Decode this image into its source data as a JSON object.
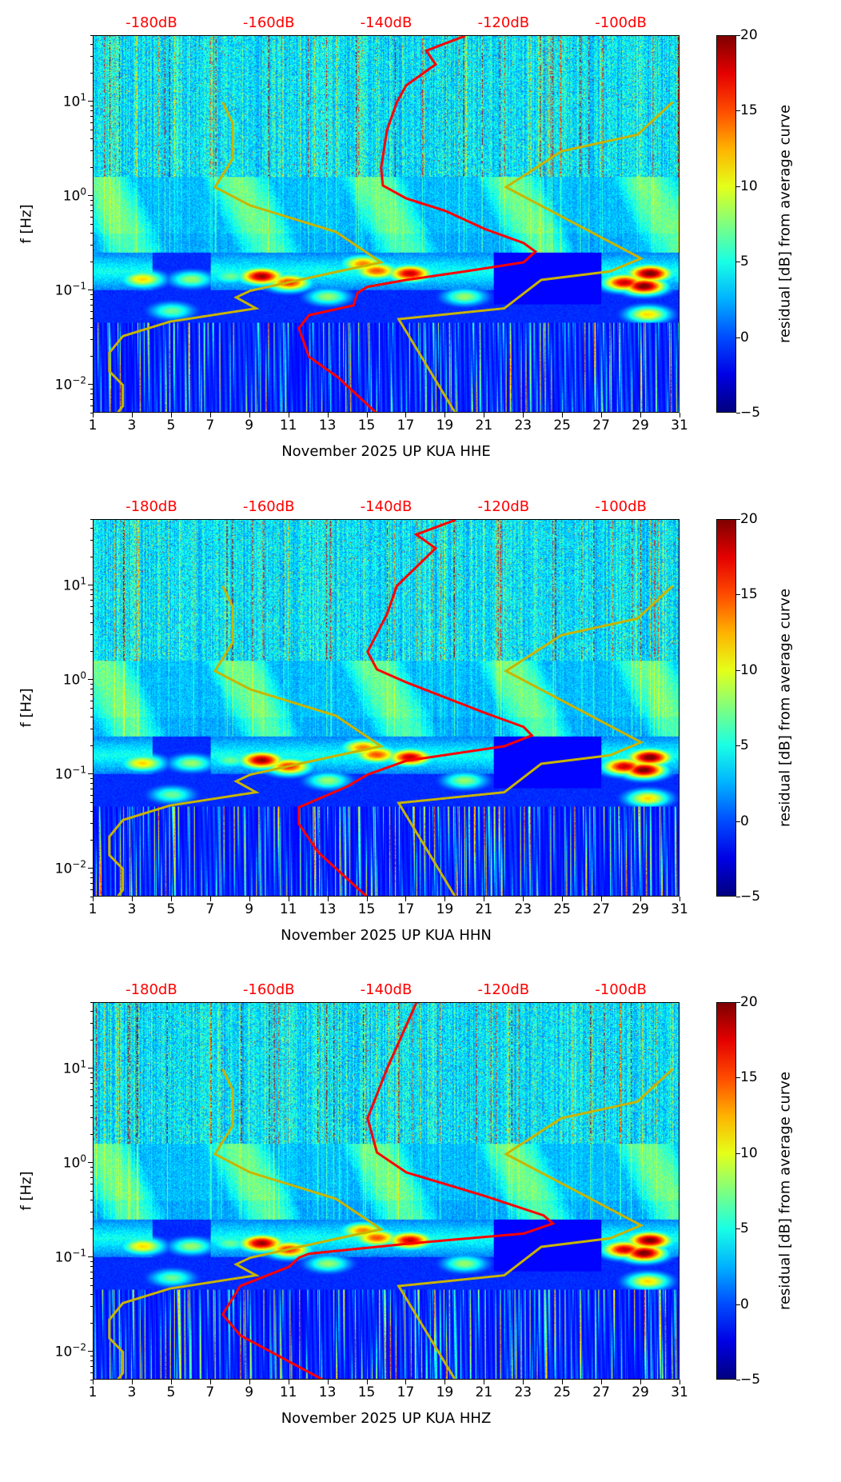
{
  "chart_data": {
    "type": "heatmap",
    "x_ticks": [
      "1",
      "3",
      "5",
      "7",
      "9",
      "11",
      "13",
      "15",
      "17",
      "19",
      "21",
      "23",
      "25",
      "27",
      "29",
      "31"
    ],
    "x_range": [
      1,
      31
    ],
    "y_label": "f [Hz]",
    "y_range_hz": [
      0.005,
      50
    ],
    "y_scale": "log",
    "y_ticks": [
      {
        "base": "10",
        "exp": "−2",
        "value": 0.01
      },
      {
        "base": "10",
        "exp": "−1",
        "value": 0.1
      },
      {
        "base": "10",
        "exp": "0",
        "value": 1
      },
      {
        "base": "10",
        "exp": "1",
        "value": 10
      }
    ],
    "top_axis_labels": [
      "-180dB",
      "-160dB",
      "-140dB",
      "-120dB",
      "-100dB"
    ],
    "top_axis_values_db": [
      -180,
      -160,
      -140,
      -120,
      -100
    ],
    "colorbar": {
      "label": "residual [dB] from average curve",
      "range": [
        -5,
        20
      ],
      "ticks": [
        "−5",
        "0",
        "5",
        "10",
        "15",
        "20"
      ],
      "colormap": "jet"
    },
    "nlnm_color": "#c8b400",
    "mean_color": "#ff0000",
    "low_noise_model": [
      [
        10,
        -168
      ],
      [
        6,
        -166.3
      ],
      [
        2.5,
        -166.3
      ],
      [
        1.25,
        -169.3
      ],
      [
        0.8,
        -163.3
      ],
      [
        0.42,
        -148.7
      ],
      [
        0.2,
        -141
      ],
      [
        0.16,
        -148.3
      ],
      [
        0.1,
        -163.3
      ],
      [
        0.085,
        -165.7
      ],
      [
        0.065,
        -162.3
      ],
      [
        0.047,
        -177
      ],
      [
        0.033,
        -185
      ],
      [
        0.022,
        -187.3
      ],
      [
        0.014,
        -187.3
      ],
      [
        0.01,
        -185
      ],
      [
        0.006,
        -185
      ],
      [
        0.005,
        -186
      ]
    ],
    "high_noise_model": [
      [
        10,
        -91.3
      ],
      [
        4.5,
        -97.3
      ],
      [
        3,
        -110.3
      ],
      [
        1.25,
        -119.7
      ],
      [
        0.22,
        -96.7
      ],
      [
        0.16,
        -102
      ],
      [
        0.13,
        -113.7
      ],
      [
        0.065,
        -120
      ],
      [
        0.05,
        -138
      ],
      [
        0.005,
        -128.3
      ]
    ],
    "panels": [
      {
        "xlabel": "November 2025 UP KUA  HHE",
        "channel": "HHE",
        "mean_curve": [
          [
            50,
            -126.7
          ],
          [
            35,
            -133.3
          ],
          [
            25,
            -131.7
          ],
          [
            15,
            -136.7
          ],
          [
            10,
            -138.3
          ],
          [
            5,
            -140
          ],
          [
            2,
            -141
          ],
          [
            1.3,
            -140.7
          ],
          [
            0.95,
            -136.7
          ],
          [
            0.7,
            -130
          ],
          [
            0.45,
            -123.3
          ],
          [
            0.32,
            -116.7
          ],
          [
            0.26,
            -114.7
          ],
          [
            0.2,
            -116.7
          ],
          [
            0.16,
            -126.7
          ],
          [
            0.13,
            -136.7
          ],
          [
            0.11,
            -143.3
          ],
          [
            0.095,
            -145
          ],
          [
            0.07,
            -145.7
          ],
          [
            0.055,
            -153.3
          ],
          [
            0.04,
            -155
          ],
          [
            0.02,
            -153.3
          ],
          [
            0.012,
            -148.3
          ],
          [
            0.005,
            -141.7
          ]
        ]
      },
      {
        "xlabel": "November 2025 UP KUA  HHN",
        "channel": "HHN",
        "mean_curve": [
          [
            50,
            -128.3
          ],
          [
            35,
            -135
          ],
          [
            25,
            -131.7
          ],
          [
            10,
            -138.3
          ],
          [
            5,
            -140
          ],
          [
            2,
            -143.3
          ],
          [
            1.3,
            -141.7
          ],
          [
            0.95,
            -136.7
          ],
          [
            0.45,
            -123.3
          ],
          [
            0.32,
            -116.7
          ],
          [
            0.26,
            -115.3
          ],
          [
            0.2,
            -120
          ],
          [
            0.14,
            -136.7
          ],
          [
            0.1,
            -143.3
          ],
          [
            0.075,
            -146.7
          ],
          [
            0.045,
            -155
          ],
          [
            0.03,
            -155
          ],
          [
            0.015,
            -151.7
          ],
          [
            0.005,
            -143.3
          ]
        ]
      },
      {
        "xlabel": "November 2025 UP KUA  HHZ",
        "channel": "HHZ",
        "mean_curve": [
          [
            50,
            -135
          ],
          [
            10,
            -140
          ],
          [
            3,
            -143.3
          ],
          [
            1.3,
            -141.7
          ],
          [
            0.8,
            -136.7
          ],
          [
            0.45,
            -123.3
          ],
          [
            0.28,
            -113.3
          ],
          [
            0.23,
            -111.7
          ],
          [
            0.18,
            -116.7
          ],
          [
            0.14,
            -136.7
          ],
          [
            0.11,
            -153.3
          ],
          [
            0.1,
            -155
          ],
          [
            0.08,
            -156.7
          ],
          [
            0.05,
            -165
          ],
          [
            0.025,
            -168
          ],
          [
            0.015,
            -165
          ],
          [
            0.005,
            -150.7
          ]
        ]
      }
    ]
  }
}
